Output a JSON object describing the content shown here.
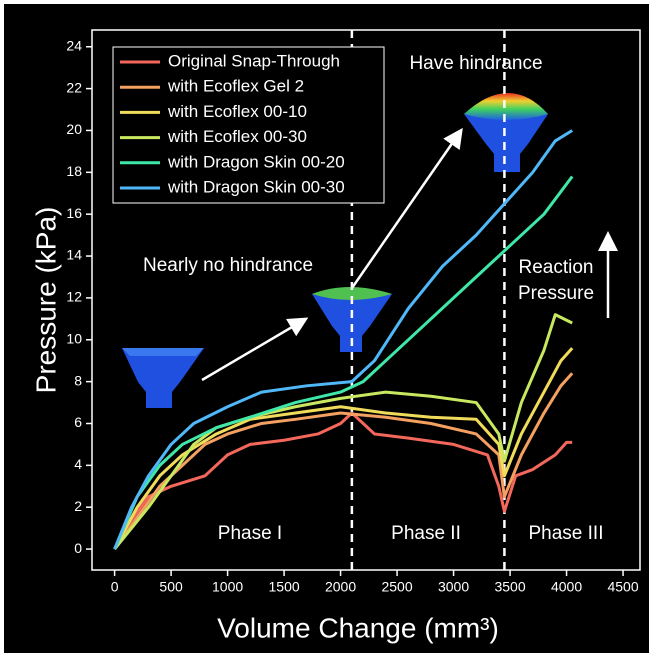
{
  "chart_data": {
    "type": "line",
    "x_label": "Volume Change (mm³)",
    "y_label": "Pressure (kPa)",
    "xlim": [
      -200,
      4650
    ],
    "ylim": [
      -1,
      24.8
    ],
    "xticks": [
      0,
      500,
      1000,
      1500,
      2000,
      2500,
      3000,
      3500,
      4000,
      4500
    ],
    "yticks": [
      0,
      2,
      4,
      6,
      8,
      10,
      12,
      14,
      16,
      18,
      20,
      22,
      24
    ],
    "vlines": [
      2100,
      3450
    ],
    "annotations": [
      "Have hindrance",
      "Nearly no hindrance",
      "Reaction",
      "Pressure",
      "Phase I",
      "Phase II",
      "Phase III"
    ],
    "series": [
      {
        "name": "Original Snap-Through",
        "color": "#f4685c",
        "x": [
          0,
          100,
          300,
          500,
          800,
          1000,
          1200,
          1500,
          1800,
          2000,
          2100,
          2300,
          2600,
          3000,
          3300,
          3400,
          3450,
          3550,
          3700,
          3900,
          4000,
          4050
        ],
        "values": [
          0,
          1,
          2.5,
          3,
          3.5,
          4.5,
          5,
          5.2,
          5.5,
          6,
          6.5,
          5.5,
          5.3,
          5,
          4.5,
          3,
          1.8,
          3.5,
          3.8,
          4.5,
          5.1,
          5.1
        ]
      },
      {
        "name": "with Ecoflex Gel 2",
        "color": "#f4a060",
        "x": [
          0,
          200,
          400,
          600,
          800,
          1000,
          1300,
          1600,
          2000,
          2400,
          2800,
          3200,
          3400,
          3450,
          3600,
          3800,
          3950,
          4050
        ],
        "values": [
          0,
          1.5,
          3,
          4,
          5,
          5.5,
          6,
          6.2,
          6.5,
          6.3,
          6,
          5.5,
          4.5,
          2.5,
          4.5,
          6.5,
          7.8,
          8.4
        ]
      },
      {
        "name": "with Ecoflex 00-10",
        "color": "#f0dc5a",
        "x": [
          0,
          200,
          400,
          600,
          900,
          1200,
          1600,
          2000,
          2400,
          2800,
          3200,
          3400,
          3450,
          3600,
          3800,
          3950,
          4050
        ],
        "values": [
          0,
          2,
          3.5,
          4.5,
          5.5,
          6.2,
          6.5,
          6.8,
          6.5,
          6.3,
          6.2,
          5,
          3.5,
          5.5,
          7.5,
          9,
          9.6
        ]
      },
      {
        "name": "with Ecoflex 00-30",
        "color": "#c8e860",
        "x": [
          0,
          150,
          300,
          500,
          700,
          900,
          1200,
          1600,
          2000,
          2400,
          2800,
          3200,
          3400,
          3450,
          3600,
          3800,
          3900,
          4050
        ],
        "values": [
          0,
          1,
          2,
          3.5,
          5,
          5.8,
          6.3,
          6.8,
          7.2,
          7.5,
          7.3,
          7,
          5.5,
          4.2,
          7,
          9.5,
          11.2,
          10.8
        ]
      },
      {
        "name": "with Dragon Skin 00-20",
        "color": "#3fe8a8",
        "x": [
          0,
          200,
          400,
          600,
          900,
          1200,
          1600,
          2000,
          2200,
          2400,
          2700,
          3000,
          3300,
          3500,
          3800,
          4050
        ],
        "values": [
          0,
          2.5,
          4,
          5,
          5.8,
          6.3,
          7,
          7.5,
          8,
          9,
          10.5,
          12,
          13.5,
          14.5,
          16,
          17.8
        ]
      },
      {
        "name": "with Dragon Skin 00-30",
        "color": "#50b8f8",
        "x": [
          0,
          150,
          300,
          500,
          700,
          1000,
          1300,
          1700,
          2100,
          2300,
          2600,
          2900,
          3200,
          3450,
          3700,
          3900,
          4050
        ],
        "values": [
          0,
          2,
          3.5,
          5,
          6,
          6.8,
          7.5,
          7.8,
          8,
          9,
          11.5,
          13.5,
          15,
          16.5,
          18,
          19.5,
          20
        ]
      }
    ]
  }
}
